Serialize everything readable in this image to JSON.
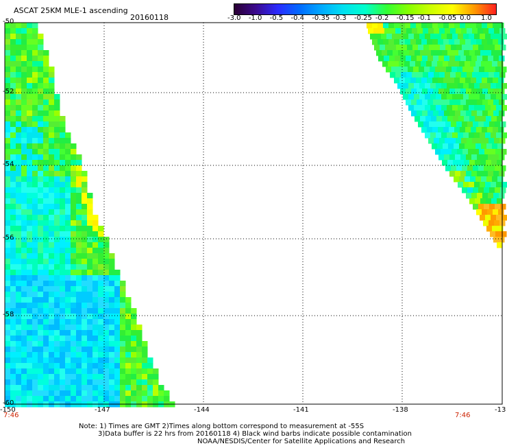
{
  "header": {
    "title": "ASCAT 25KM MLE-1 ascending",
    "date": "20160118"
  },
  "colorbar": {
    "labels": [
      "-3.0",
      "-1.0",
      "-0.5",
      "-0.4",
      "-0.35",
      "-0.3",
      "-0.25",
      "-0.2",
      "-0.15",
      "-0.1",
      "-0.05",
      "0.0",
      "1.0"
    ],
    "colors": [
      "#2a0033",
      "#3b0a8f",
      "#2b2bff",
      "#006bff",
      "#00aaff",
      "#00e0f0",
      "#00ffcc",
      "#33ff33",
      "#88ff00",
      "#ccff00",
      "#ffff00",
      "#ff9900",
      "#ff2020"
    ]
  },
  "axes": {
    "lon_labels": [
      "-150",
      "-147",
      "-144",
      "-141",
      "-138",
      "-13"
    ],
    "lat_labels": [
      "-50",
      "-52",
      "-54",
      "-56",
      "-58",
      "-60"
    ],
    "grid": true
  },
  "times": {
    "left": "7:46",
    "right": "7:46"
  },
  "notes": {
    "line1": "Note: 1) Times are GMT 2)Times along bottom correspond to measurement at -55S",
    "line2": "3)Data buffer is 22 hrs from 20160118 4) Black wind barbs indicate possible contamination",
    "line3": "NOAA/NESDIS/Center for Satellite Applications and Research"
  },
  "colors": {
    "left_swath_base": "#33ee44",
    "right_swath_base": "#44ee55"
  }
}
